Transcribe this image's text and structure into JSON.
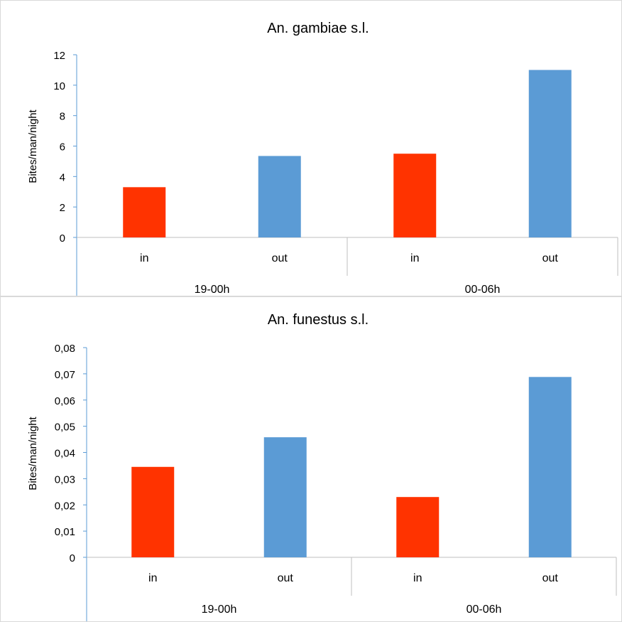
{
  "colors": {
    "in": "#ff3300",
    "out": "#5b9bd5",
    "axis": "#5b9bd5",
    "category_grid": "#bfbfbf",
    "frame": "#d9d9d9"
  },
  "chart_data": [
    {
      "type": "bar",
      "title": "An. gambiae s.l.",
      "ylabel": "Bites/man/night",
      "ylim": [
        0,
        12
      ],
      "yticks": [
        "0",
        "2",
        "4",
        "6",
        "8",
        "10",
        "12"
      ],
      "groups": [
        "19-00h",
        "00-06h"
      ],
      "categories": [
        "in",
        "out",
        "in",
        "out"
      ],
      "category_groups": [
        "19-00h",
        "19-00h",
        "00-06h",
        "00-06h"
      ],
      "values": [
        3.3,
        5.35,
        5.5,
        11.0
      ],
      "bar_colors": [
        "in",
        "out",
        "in",
        "out"
      ],
      "grid": false,
      "legend": "none"
    },
    {
      "type": "bar",
      "title": "An. funestus s.l.",
      "ylabel": "Bites/man/night",
      "ylim": [
        0,
        0.08
      ],
      "yticks": [
        "0",
        "0,01",
        "0,02",
        "0,03",
        "0,04",
        "0,05",
        "0,06",
        "0,07",
        "0,08"
      ],
      "groups": [
        "19-00h",
        "00-06h"
      ],
      "categories": [
        "in",
        "out",
        "in",
        "out"
      ],
      "category_groups": [
        "19-00h",
        "19-00h",
        "00-06h",
        "00-06h"
      ],
      "values": [
        0.0345,
        0.0458,
        0.023,
        0.0688
      ],
      "bar_colors": [
        "in",
        "out",
        "in",
        "out"
      ],
      "grid": false,
      "legend": "none"
    }
  ]
}
